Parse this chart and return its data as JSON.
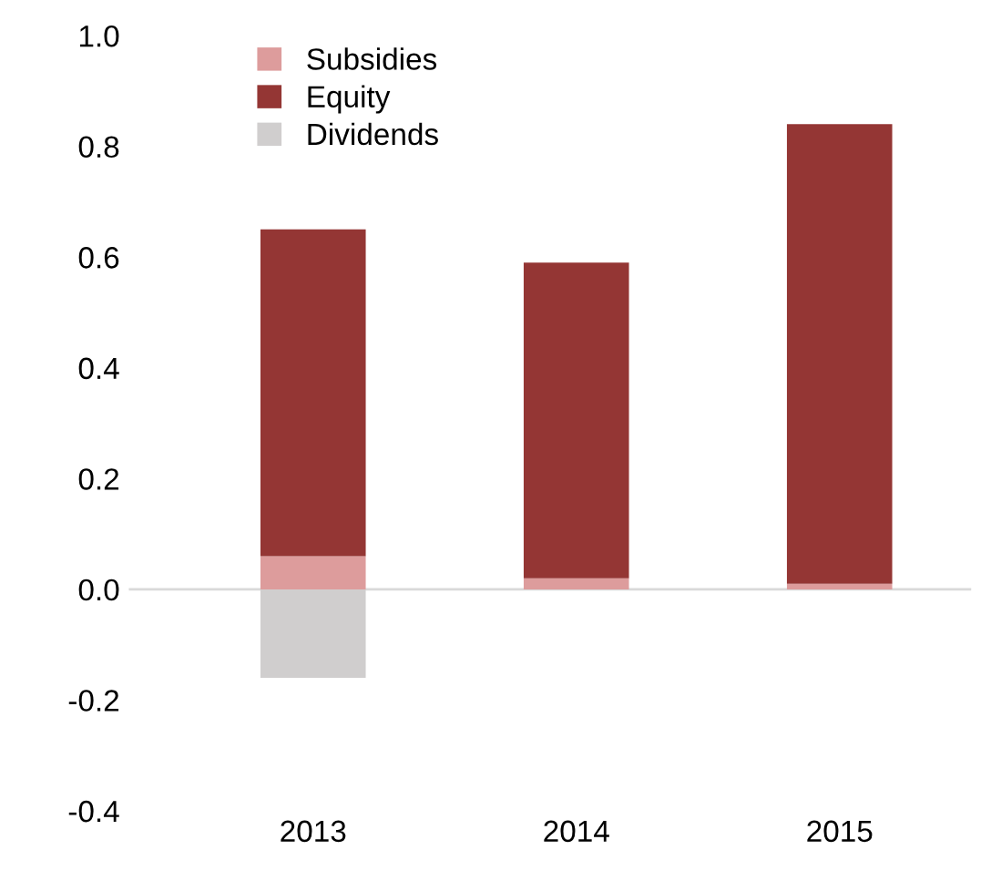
{
  "chart_data": {
    "type": "bar",
    "stacked": true,
    "categories": [
      "2013",
      "2014",
      "2015"
    ],
    "series": [
      {
        "name": "Subsidies",
        "color": "#dd9c9c",
        "values": [
          0.06,
          0.02,
          0.01
        ]
      },
      {
        "name": "Equity",
        "color": "#943634",
        "values": [
          0.59,
          0.57,
          0.83
        ]
      },
      {
        "name": "Dividends",
        "color": "#d0cece",
        "values": [
          -0.16,
          0,
          0
        ]
      }
    ],
    "ylim": [
      -0.4,
      1.0
    ],
    "yticks": [
      {
        "value": -0.4,
        "label": "-0.4"
      },
      {
        "value": -0.2,
        "label": "-0.2"
      },
      {
        "value": 0,
        "label": "0.0"
      },
      {
        "value": 0.2,
        "label": "0.2"
      },
      {
        "value": 0.4,
        "label": "0.4"
      },
      {
        "value": 0.6,
        "label": "0.6"
      },
      {
        "value": 0.8,
        "label": "0.8"
      },
      {
        "value": 1.0,
        "label": "1.0"
      }
    ],
    "ref_lines": [
      {
        "axis": "y",
        "value": 0,
        "color": "#d9d9d9"
      }
    ],
    "legend": "top left"
  }
}
